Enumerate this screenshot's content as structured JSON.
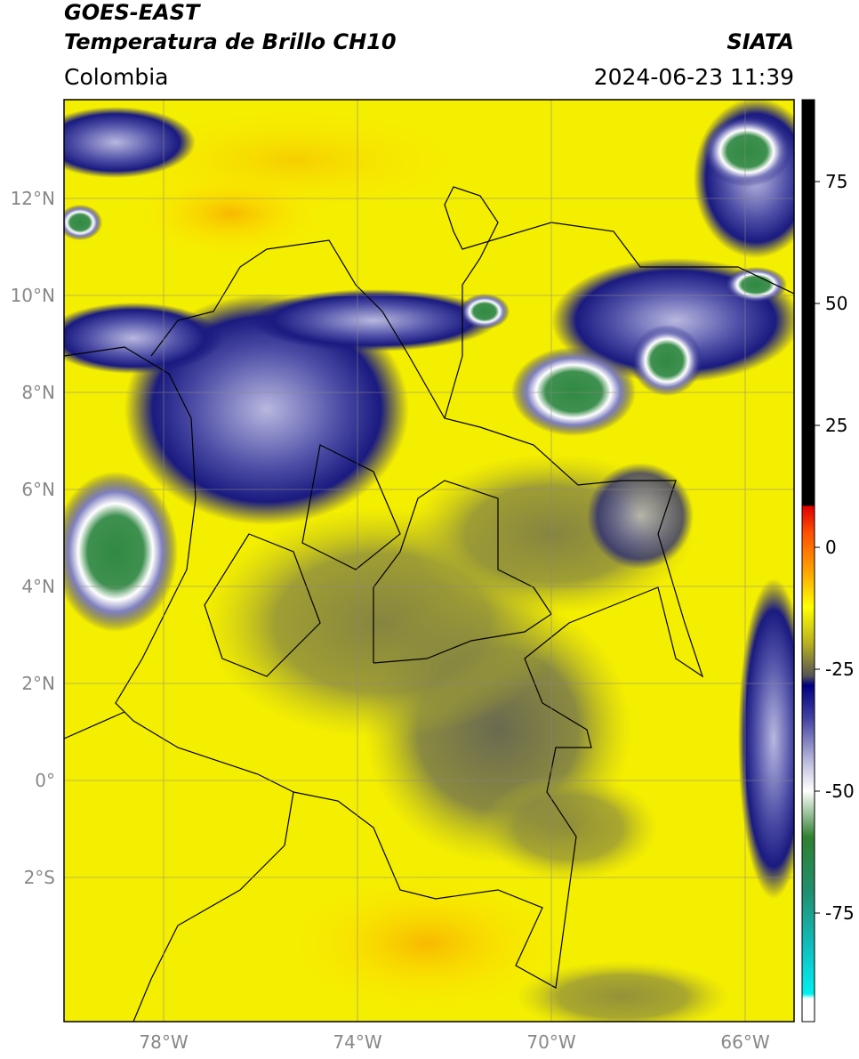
{
  "header": {
    "satellite": "GOES-EAST",
    "product": "Temperatura de Brillo CH10",
    "region": "Colombia",
    "source": "SIATA",
    "datetime": "2024-06-23 11:39"
  },
  "map": {
    "lat_labels": [
      "12°N",
      "10°N",
      "8°N",
      "6°N",
      "4°N",
      "2°N",
      "0°",
      "2°S"
    ],
    "lon_labels": [
      "78°W",
      "74°W",
      "70°W",
      "66°W"
    ]
  },
  "colorbar": {
    "ticks": [
      75,
      50,
      25,
      0,
      -25,
      -50,
      -75
    ]
  }
}
